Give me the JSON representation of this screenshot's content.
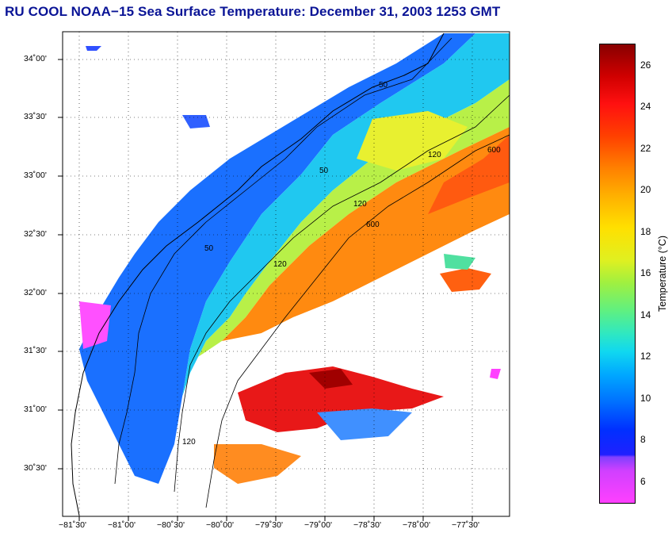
{
  "title": "RU COOL  NOAA−15  Sea Surface Temperature:  December 31, 2003 1253 GMT",
  "lat_labels": [
    "34˚00'",
    "33˚30'",
    "33˚00'",
    "32˚30'",
    "32˚00'",
    "31˚30'",
    "31˚00'",
    "30˚30'"
  ],
  "lon_labels": [
    "−81˚30'",
    "−81˚00'",
    "−80˚30'",
    "−80˚00'",
    "−79˚30'",
    "−79˚00'",
    "−78˚30'",
    "−78˚00'",
    "−77˚30'"
  ],
  "contours": {
    "c50": "50",
    "c120": "120",
    "c600": "600"
  },
  "colorbar": {
    "title": "Temperature (°C)",
    "ticks": [
      "26",
      "24",
      "22",
      "20",
      "18",
      "16",
      "14",
      "12",
      "10",
      "8",
      "6"
    ]
  }
}
